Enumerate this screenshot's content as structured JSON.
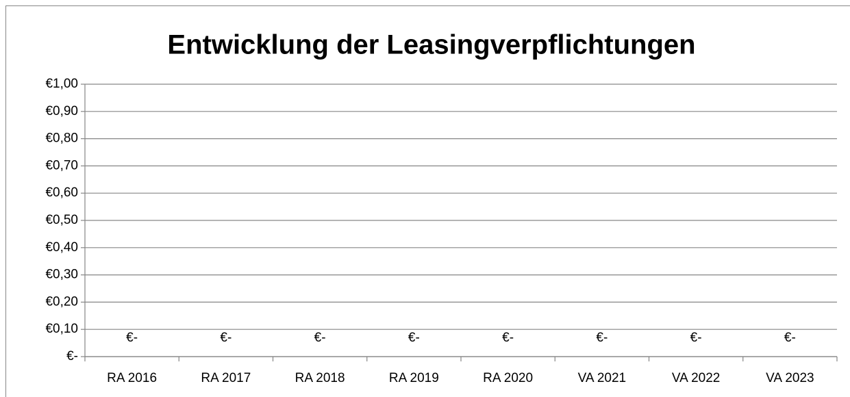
{
  "chart_data": {
    "type": "bar",
    "title": "Entwicklung der Leasingverpflichtungen",
    "categories": [
      "RA 2016",
      "RA 2017",
      "RA 2018",
      "RA 2019",
      "RA 2020",
      "VA 2021",
      "VA 2022",
      "VA 2023"
    ],
    "values": [
      0,
      0,
      0,
      0,
      0,
      0,
      0,
      0
    ],
    "value_labels": [
      "€-",
      "€-",
      "€-",
      "€-",
      "€-",
      "€-",
      "€-",
      "€-"
    ],
    "ylim": [
      0,
      1
    ],
    "yticks": [
      {
        "value": 0,
        "label": "€-"
      },
      {
        "value": 0.1,
        "label": "€0,10"
      },
      {
        "value": 0.2,
        "label": "€0,20"
      },
      {
        "value": 0.3,
        "label": "€0,30"
      },
      {
        "value": 0.4,
        "label": "€0,40"
      },
      {
        "value": 0.5,
        "label": "€0,50"
      },
      {
        "value": 0.6,
        "label": "€0,60"
      },
      {
        "value": 0.7,
        "label": "€0,70"
      },
      {
        "value": 0.8,
        "label": "€0,80"
      },
      {
        "value": 0.9,
        "label": "€0,90"
      },
      {
        "value": 1,
        "label": "€1,00"
      }
    ],
    "grid": true
  }
}
